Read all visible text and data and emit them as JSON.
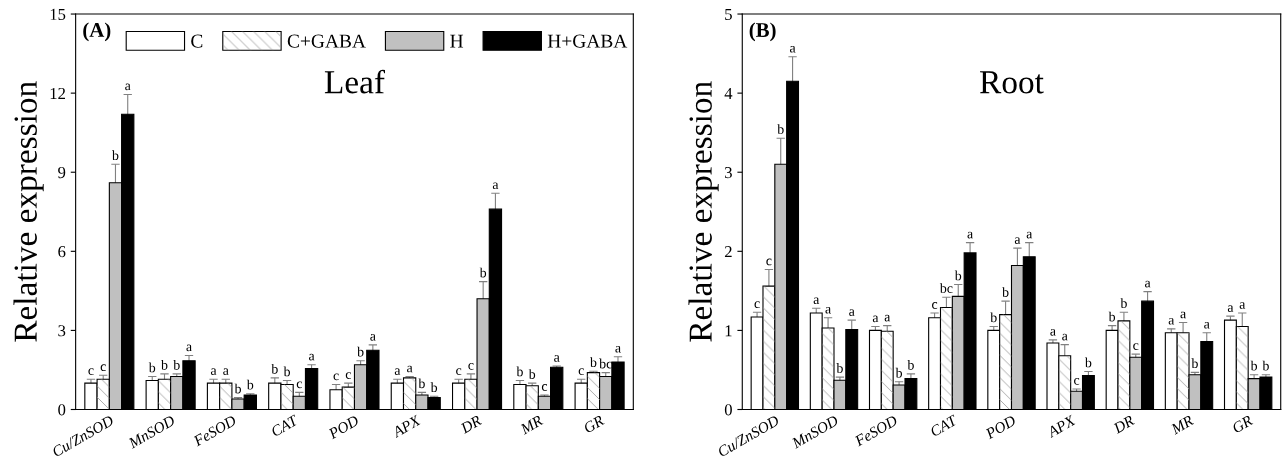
{
  "chart_data": [
    {
      "type": "bar",
      "title": "Leaf",
      "ylabel": "Relative expression",
      "annotations": [
        "(A)"
      ],
      "categories": [
        "Cu/ZnSOD",
        "MnSOD",
        "FeSOD",
        "CAT",
        "POD",
        "APX",
        "DR",
        "MR",
        "GR"
      ],
      "ylim": [
        0,
        15
      ],
      "yticks": [
        0,
        3,
        6,
        9,
        12,
        15
      ],
      "legend": "top",
      "grid": false,
      "series": [
        {
          "name": "C",
          "color": "#ffffff",
          "values": [
            1.0,
            1.1,
            1.0,
            1.0,
            0.75,
            1.0,
            1.0,
            0.95,
            1.0
          ],
          "errors": [
            0.15,
            0.15,
            0.15,
            0.2,
            0.2,
            0.15,
            0.15,
            0.15,
            0.15
          ],
          "value_labels": [
            "c",
            "b",
            "a",
            "b",
            "c",
            "a",
            "c",
            "b",
            "c"
          ]
        },
        {
          "name": "C+GABA",
          "color": "#ffffff",
          "values": [
            1.15,
            1.15,
            1.0,
            0.95,
            0.85,
            1.2,
            1.15,
            0.9,
            1.4
          ],
          "errors": [
            0.15,
            0.2,
            0.15,
            0.15,
            0.15,
            0.05,
            0.2,
            0.1,
            0.05
          ],
          "value_labels": [
            "c",
            "b",
            "a",
            "b",
            "c",
            "a",
            "c",
            "b",
            "b"
          ]
        },
        {
          "name": "H",
          "color": "#c0c0c0",
          "values": [
            8.6,
            1.25,
            0.4,
            0.5,
            1.7,
            0.55,
            4.2,
            0.5,
            1.25
          ],
          "errors": [
            0.7,
            0.1,
            0.05,
            0.15,
            0.15,
            0.1,
            0.65,
            0.05,
            0.15
          ],
          "value_labels": [
            "b",
            "b",
            "b",
            "c",
            "b",
            "b",
            "b",
            "c",
            "bc"
          ]
        },
        {
          "name": "H+GABA",
          "color": "#000000",
          "values": [
            11.2,
            1.85,
            0.55,
            1.55,
            2.25,
            0.45,
            7.6,
            1.6,
            1.8
          ],
          "errors": [
            0.75,
            0.2,
            0.05,
            0.15,
            0.2,
            0.05,
            0.6,
            0.05,
            0.2
          ],
          "value_labels": [
            "a",
            "a",
            "b",
            "a",
            "a",
            "b",
            "a",
            "a",
            "a"
          ]
        }
      ]
    },
    {
      "type": "bar",
      "title": "Root",
      "ylabel": "Relative expression",
      "annotations": [
        "(B)"
      ],
      "categories": [
        "Cu/ZnSOD",
        "MnSOD",
        "FeSOD",
        "CAT",
        "POD",
        "APX",
        "DR",
        "MR",
        "GR"
      ],
      "ylim": [
        0,
        5
      ],
      "yticks": [
        0,
        1,
        2,
        3,
        4,
        5
      ],
      "grid": false,
      "series": [
        {
          "color": "#ffffff",
          "values": [
            1.17,
            1.22,
            1.0,
            1.16,
            1.0,
            0.84,
            1.0,
            0.97,
            1.13
          ],
          "errors": [
            0.06,
            0.06,
            0.05,
            0.06,
            0.05,
            0.04,
            0.06,
            0.05,
            0.05
          ],
          "value_labels": [
            "c",
            "a",
            "a",
            "c",
            "b",
            "a",
            "b",
            "a",
            "a"
          ]
        },
        {
          "color": "#ffffff",
          "values": [
            1.56,
            1.03,
            0.99,
            1.29,
            1.2,
            0.68,
            1.12,
            0.97,
            1.05
          ],
          "errors": [
            0.21,
            0.13,
            0.07,
            0.13,
            0.17,
            0.14,
            0.11,
            0.13,
            0.17
          ],
          "value_labels": [
            "c",
            "a",
            "a",
            "bc",
            "b",
            "a",
            "b",
            "a",
            "a"
          ]
        },
        {
          "color": "#c0c0c0",
          "values": [
            3.1,
            0.37,
            0.31,
            1.43,
            1.82,
            0.23,
            0.66,
            0.44,
            0.39
          ],
          "errors": [
            0.33,
            0.04,
            0.04,
            0.15,
            0.22,
            0.03,
            0.04,
            0.03,
            0.05
          ],
          "value_labels": [
            "b",
            "b",
            "b",
            "b",
            "a",
            "c",
            "c",
            "b",
            "b"
          ]
        },
        {
          "color": "#000000",
          "values": [
            4.15,
            1.01,
            0.39,
            1.98,
            1.93,
            0.43,
            1.37,
            0.86,
            0.41
          ],
          "errors": [
            0.31,
            0.12,
            0.06,
            0.13,
            0.18,
            0.05,
            0.12,
            0.11,
            0.03
          ],
          "value_labels": [
            "a",
            "a",
            "b",
            "a",
            "a",
            "b",
            "a",
            "a",
            "b"
          ]
        }
      ]
    }
  ]
}
